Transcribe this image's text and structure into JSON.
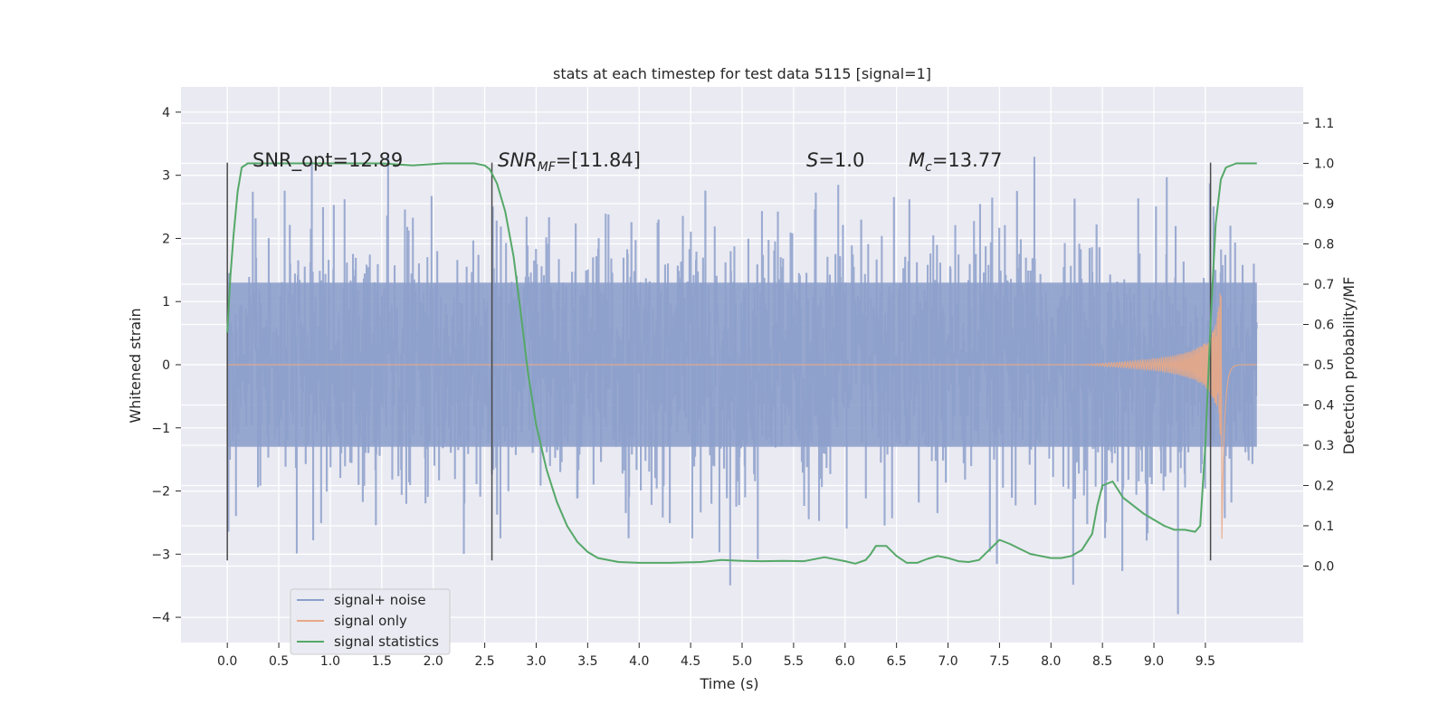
{
  "chart_data": {
    "type": "line",
    "title": "stats at each timestep for test data 5115 [signal=1]",
    "xlabel": "Time (s)",
    "ylabel": "Whitened strain",
    "y2label": "Detection probability/MF",
    "xlim": [
      -0.45,
      10.45
    ],
    "ylim": [
      -4.4,
      4.4
    ],
    "y2lim": [
      -0.19,
      1.19
    ],
    "x_ticks": [
      "0.0",
      "0.5",
      "1.0",
      "1.5",
      "2.0",
      "2.5",
      "3.0",
      "3.5",
      "4.0",
      "4.5",
      "5.0",
      "5.5",
      "6.0",
      "6.5",
      "7.0",
      "7.5",
      "8.0",
      "8.5",
      "9.0",
      "9.5"
    ],
    "y_ticks": [
      "4",
      "3",
      "2",
      "1",
      "0",
      "−1",
      "−2",
      "−3",
      "−4"
    ],
    "y2_ticks": [
      "1.1",
      "1.0",
      "0.9",
      "0.8",
      "0.7",
      "0.6",
      "0.5",
      "0.4",
      "0.3",
      "0.2",
      "0.1",
      "0.0"
    ],
    "grid": true,
    "legend_position": "lower-left",
    "annotations": {
      "snr_opt": "SNR_opt=12.89",
      "snr_mf_sym": "SNR",
      "snr_mf_sub": "MF",
      "snr_mf_val": "=[11.84]",
      "s_sym": "S",
      "s_val": "=1.0",
      "mc_sym": "M",
      "mc_sub": "c",
      "mc_val": "=13.77"
    },
    "vertical_markers": [
      0.0,
      2.57,
      9.55
    ],
    "series": [
      {
        "name": "signal+ noise",
        "color": "#8da0cb",
        "description": "whitened noise, dense, |y| mostly < 3, extremes about 4",
        "x_range": [
          0.0,
          10.0
        ]
      },
      {
        "name": "signal only",
        "color": "#e8a886",
        "description": "chirp, amplitude growing to about 2.9 near t=9.65",
        "x_range": [
          0.0,
          10.0
        ]
      },
      {
        "name": "signal statistics",
        "color": "#55a868",
        "axis": "right",
        "x": [
          0.0,
          0.03,
          0.06,
          0.1,
          0.14,
          0.2,
          0.3,
          0.5,
          0.8,
          1.2,
          1.5,
          1.8,
          2.1,
          2.4,
          2.5,
          2.55,
          2.62,
          2.7,
          2.78,
          2.85,
          2.92,
          3.0,
          3.1,
          3.2,
          3.3,
          3.4,
          3.5,
          3.6,
          3.8,
          4.0,
          4.3,
          4.6,
          4.8,
          5.0,
          5.2,
          5.4,
          5.6,
          5.8,
          6.0,
          6.1,
          6.2,
          6.25,
          6.3,
          6.4,
          6.5,
          6.6,
          6.7,
          6.8,
          6.9,
          7.0,
          7.1,
          7.2,
          7.3,
          7.4,
          7.5,
          7.6,
          7.8,
          8.0,
          8.1,
          8.2,
          8.3,
          8.4,
          8.45,
          8.5,
          8.6,
          8.7,
          8.9,
          9.1,
          9.2,
          9.3,
          9.4,
          9.45,
          9.5,
          9.55,
          9.6,
          9.65,
          9.7,
          9.8,
          9.9,
          10.0
        ],
        "values": [
          0.58,
          0.72,
          0.82,
          0.93,
          0.99,
          1.0,
          1.0,
          1.0,
          1.0,
          1.0,
          1.0,
          0.995,
          1.0,
          1.0,
          0.995,
          0.985,
          0.95,
          0.88,
          0.77,
          0.63,
          0.48,
          0.35,
          0.24,
          0.16,
          0.1,
          0.06,
          0.035,
          0.02,
          0.01,
          0.008,
          0.008,
          0.01,
          0.015,
          0.013,
          0.012,
          0.013,
          0.012,
          0.022,
          0.012,
          0.006,
          0.015,
          0.03,
          0.05,
          0.05,
          0.025,
          0.008,
          0.008,
          0.018,
          0.025,
          0.02,
          0.012,
          0.01,
          0.015,
          0.04,
          0.065,
          0.055,
          0.03,
          0.02,
          0.02,
          0.025,
          0.04,
          0.08,
          0.15,
          0.2,
          0.21,
          0.17,
          0.13,
          0.1,
          0.09,
          0.09,
          0.085,
          0.1,
          0.3,
          0.6,
          0.85,
          0.96,
          0.99,
          1.0,
          1.0,
          1.0
        ]
      }
    ]
  }
}
